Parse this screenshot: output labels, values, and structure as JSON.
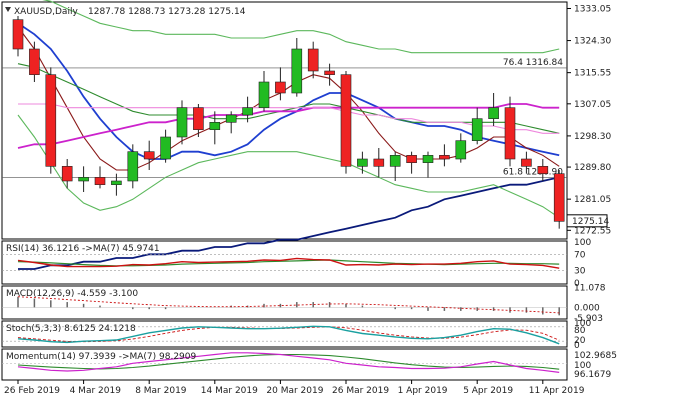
{
  "chart_data": {
    "type": "candlestick",
    "symbol": "XAUUSD,Daily",
    "ohlc_header": "1287.78 1288.73 1273.28 1275.14",
    "last_price": "1275.14",
    "price_range": [
      1271,
      1334
    ],
    "price_ticks": [
      "1333.05",
      "1324.30",
      "1315.55",
      "1307.05",
      "1298.30",
      "1289.80",
      "1281.05",
      "1272.55"
    ],
    "x_labels": [
      "26 Feb 2019",
      "4 Mar 2019",
      "8 Mar 2019",
      "14 Mar 2019",
      "20 Mar 2019",
      "26 Mar 2019",
      "1 Apr 2019",
      "5 Apr 2019",
      "11 Apr 2019"
    ],
    "x_label_bars": [
      0,
      4,
      8,
      12,
      16,
      20,
      24,
      28,
      32
    ],
    "fib_levels": [
      {
        "label": "76.4 1316.84",
        "value": 1316.84
      },
      {
        "label": "61.8 1286.90",
        "value": 1286.9
      }
    ],
    "candles": [
      [
        1330,
        1331,
        1320,
        1322
      ],
      [
        1322,
        1324,
        1313,
        1315
      ],
      [
        1315,
        1317,
        1288,
        1290
      ],
      [
        1290,
        1292,
        1284,
        1286
      ],
      [
        1286,
        1290,
        1283,
        1287
      ],
      [
        1287,
        1290,
        1284,
        1285
      ],
      [
        1285,
        1288,
        1282,
        1286
      ],
      [
        1286,
        1296,
        1284,
        1294
      ],
      [
        1294,
        1297,
        1289,
        1292
      ],
      [
        1292,
        1300,
        1291,
        1298
      ],
      [
        1298,
        1308,
        1296,
        1306
      ],
      [
        1306,
        1307,
        1298,
        1300
      ],
      [
        1300,
        1305,
        1296,
        1302
      ],
      [
        1302,
        1305,
        1299,
        1304
      ],
      [
        1304,
        1309,
        1302,
        1306
      ],
      [
        1306,
        1316,
        1305,
        1313
      ],
      [
        1313,
        1317,
        1308,
        1310
      ],
      [
        1310,
        1325,
        1309,
        1322
      ],
      [
        1322,
        1324,
        1314,
        1316
      ],
      [
        1316,
        1318,
        1312,
        1315
      ],
      [
        1315,
        1316,
        1288,
        1290
      ],
      [
        1290,
        1294,
        1288,
        1292
      ],
      [
        1292,
        1295,
        1287,
        1290
      ],
      [
        1290,
        1294,
        1286,
        1293
      ],
      [
        1293,
        1294,
        1288,
        1291
      ],
      [
        1291,
        1294,
        1287,
        1293
      ],
      [
        1293,
        1296,
        1290,
        1292
      ],
      [
        1292,
        1299,
        1291,
        1297
      ],
      [
        1297,
        1306,
        1296,
        1303
      ],
      [
        1303,
        1310,
        1301,
        1306
      ],
      [
        1306,
        1309,
        1290,
        1292
      ],
      [
        1292,
        1294,
        1288,
        1290
      ],
      [
        1290,
        1292,
        1286,
        1288
      ],
      [
        1288,
        1289,
        1273,
        1275
      ]
    ],
    "ma_lines": [
      {
        "name": "blue",
        "color": "#1f3fd0",
        "values": [
          1329,
          1326,
          1322,
          1316,
          1309,
          1303,
          1298,
          1294,
          1292,
          1292,
          1294,
          1294,
          1293,
          1294,
          1296,
          1300,
          1303,
          1305,
          1308,
          1310,
          1310,
          1308,
          1306,
          1303,
          1302,
          1301,
          1301,
          1300,
          1298,
          1297,
          1296,
          1295,
          1294,
          1293
        ]
      },
      {
        "name": "dark-red",
        "color": "#8b1a1a",
        "values": [
          1328,
          1322,
          1314,
          1306,
          1298,
          1292,
          1289,
          1289,
          1291,
          1294,
          1297,
          1299,
          1301,
          1303,
          1305,
          1308,
          1310,
          1313,
          1315,
          1314,
          1310,
          1305,
          1299,
          1294,
          1292,
          1292,
          1292,
          1293,
          1295,
          1298,
          1298,
          1295,
          1293,
          1290
        ]
      },
      {
        "name": "green",
        "color": "#2e8b2e",
        "values": [
          1318,
          1317,
          1315,
          1313,
          1311,
          1309,
          1307,
          1305,
          1304,
          1304,
          1304,
          1304,
          1303,
          1303,
          1303,
          1304,
          1305,
          1306,
          1307,
          1307,
          1306,
          1305,
          1304,
          1303,
          1302,
          1302,
          1302,
          1302,
          1302,
          1302,
          1302,
          1301,
          1300,
          1299
        ]
      },
      {
        "name": "magenta",
        "color": "#cc22cc",
        "values": [
          1295,
          1296,
          1296,
          1297,
          1298,
          1299,
          1300,
          1301,
          1302,
          1302,
          1303,
          1303,
          1304,
          1304,
          1304,
          1305,
          1305,
          1305,
          1306,
          1306,
          1306,
          1306,
          1306,
          1306,
          1306,
          1306,
          1306,
          1306,
          1306,
          1306,
          1307,
          1307,
          1306,
          1306
        ]
      },
      {
        "name": "pink",
        "color": "#ee88dd",
        "values": [
          1307,
          1307,
          1307,
          1306,
          1306,
          1306,
          1306,
          1306,
          1306,
          1306,
          1306,
          1306,
          1306,
          1306,
          1306,
          1306,
          1306,
          1306,
          1306,
          1306,
          1305,
          1304,
          1304,
          1303,
          1303,
          1302,
          1302,
          1302,
          1301,
          1301,
          1300,
          1300,
          1299,
          1299
        ]
      },
      {
        "name": "navy",
        "color": "#0a1a7a",
        "values": [
          1262,
          1262,
          1263,
          1263,
          1264,
          1264,
          1265,
          1265,
          1266,
          1266,
          1267,
          1267,
          1268,
          1268,
          1269,
          1269,
          1270,
          1270,
          1271,
          1272,
          1273,
          1274,
          1275,
          1276,
          1278,
          1279,
          1281,
          1282,
          1283,
          1284,
          1285,
          1285,
          1286,
          1287
        ]
      },
      {
        "name": "bb-upper",
        "color": "#5cb85c",
        "values": [
          1336,
          1336,
          1335,
          1333,
          1331,
          1329,
          1328,
          1327,
          1327,
          1326,
          1326,
          1326,
          1326,
          1325,
          1325,
          1325,
          1326,
          1327,
          1327,
          1326,
          1324,
          1323,
          1322,
          1322,
          1321,
          1321,
          1321,
          1321,
          1321,
          1321,
          1321,
          1321,
          1321,
          1322
        ]
      },
      {
        "name": "bb-lower",
        "color": "#5cb85c",
        "values": [
          1304,
          1298,
          1291,
          1284,
          1280,
          1278,
          1279,
          1281,
          1284,
          1287,
          1289,
          1291,
          1292,
          1293,
          1294,
          1294,
          1294,
          1294,
          1293,
          1292,
          1291,
          1289,
          1287,
          1285,
          1284,
          1283,
          1283,
          1283,
          1284,
          1285,
          1283,
          1281,
          1279,
          1276
        ]
      }
    ],
    "rsi": {
      "label": "RSI(14) 36.1216 ->MA(7) 45.9741",
      "ticks": [
        "100",
        "70",
        "30",
        "0"
      ],
      "rsi_values": [
        55,
        50,
        44,
        40,
        40,
        40,
        41,
        45,
        44,
        47,
        52,
        50,
        51,
        52,
        53,
        56,
        55,
        60,
        57,
        56,
        44,
        45,
        44,
        46,
        45,
        46,
        46,
        48,
        52,
        54,
        46,
        45,
        43,
        36
      ],
      "ma_values": [
        52,
        51,
        49,
        47,
        45,
        43,
        42,
        42,
        43,
        44,
        46,
        47,
        48,
        49,
        50,
        52,
        53,
        54,
        55,
        56,
        54,
        52,
        50,
        48,
        47,
        46,
        45,
        46,
        47,
        48,
        48,
        47,
        47,
        46
      ]
    },
    "macd": {
      "label": "MACD(12,26,9) -4.559 -3.100",
      "ticks": [
        "11.078",
        "0.000",
        "-5.903"
      ],
      "hist_values": [
        6,
        5,
        4,
        3,
        2,
        1,
        0,
        -1,
        -1,
        -1,
        0,
        0,
        0,
        1,
        1,
        2,
        2,
        3,
        3,
        3,
        2,
        1,
        0,
        -1,
        -1,
        -2,
        -2,
        -2,
        -2,
        -2,
        -3,
        -3,
        -4,
        -4.5
      ],
      "signal_values": [
        6,
        5.5,
        5,
        4.4,
        3.8,
        3.2,
        2.6,
        2,
        1.5,
        1,
        0.7,
        0.5,
        0.4,
        0.4,
        0.5,
        0.7,
        1,
        1.3,
        1.6,
        1.9,
        2,
        1.8,
        1.5,
        1.1,
        0.7,
        0.3,
        -0.1,
        -0.5,
        -0.9,
        -1.3,
        -1.7,
        -2.1,
        -2.6,
        -3.1
      ]
    },
    "stoch": {
      "label": "Stoch(5,3,3) 8.6125 24.1218",
      "ticks": [
        "100",
        "80",
        "20",
        "0"
      ],
      "k_values": [
        30,
        25,
        18,
        15,
        20,
        22,
        25,
        40,
        55,
        65,
        75,
        80,
        78,
        75,
        72,
        72,
        74,
        78,
        82,
        80,
        65,
        52,
        45,
        38,
        32,
        30,
        35,
        45,
        60,
        72,
        70,
        55,
        35,
        9
      ],
      "d_values": [
        35,
        30,
        24,
        19,
        18,
        19,
        22,
        29,
        40,
        53,
        65,
        73,
        78,
        78,
        75,
        73,
        73,
        75,
        78,
        80,
        76,
        66,
        54,
        45,
        38,
        33,
        32,
        37,
        47,
        59,
        67,
        66,
        53,
        24
      ]
    },
    "momentum": {
      "label": "Momentum(14) 97.3939 ->MA(7) 98.2909",
      "ticks": [
        "102.9685",
        "100",
        "96.1679"
      ],
      "mom_values": [
        99,
        98.5,
        98,
        97.8,
        98,
        98.5,
        99,
        100,
        100.5,
        101,
        101.5,
        102,
        102.5,
        103,
        103,
        102.8,
        102.5,
        102,
        101.5,
        101,
        100,
        99.5,
        99,
        98.8,
        98.5,
        98.5,
        98.6,
        99,
        99.8,
        100.5,
        99.5,
        98.5,
        98,
        97.4
      ],
      "ma_values": [
        99.5,
        99.2,
        98.9,
        98.7,
        98.5,
        98.4,
        98.5,
        98.8,
        99.2,
        99.7,
        100.2,
        100.7,
        101.2,
        101.7,
        102.1,
        102.4,
        102.5,
        102.5,
        102.4,
        102.2,
        101.8,
        101.3,
        100.7,
        100.1,
        99.6,
        99.2,
        98.9,
        98.8,
        98.9,
        99.1,
        99.2,
        99.1,
        98.8,
        98.3
      ]
    }
  }
}
